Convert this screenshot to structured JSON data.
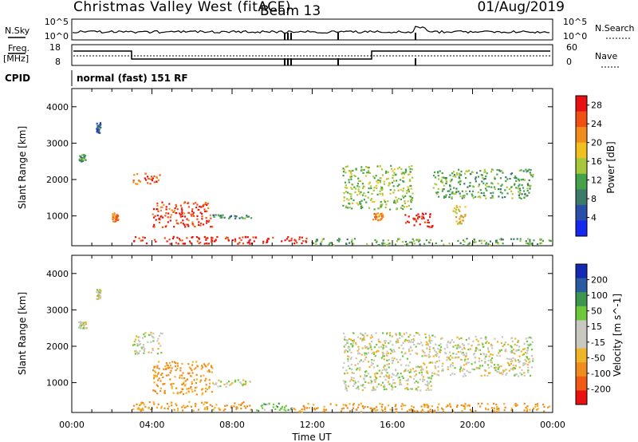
{
  "header": {
    "station": "Christmas Valley West (fitACF)",
    "beam": "Beam 13",
    "date": "01/Aug/2019"
  },
  "nsky_panel": {
    "left_label": "N.Sky",
    "left_tick_top": "10^5",
    "left_tick_bottom": "10^0",
    "right_tick_top": "10^5",
    "right_tick_bottom": "10^0",
    "right_label": "N.Search"
  },
  "freq_panel": {
    "left_label_1": "Freq.",
    "left_label_2": "[MHz]",
    "left_tick_top": "18",
    "left_tick_bottom": "8",
    "right_tick_top": "60",
    "right_tick_bottom": "0",
    "right_label": "Nave"
  },
  "cpid": {
    "label": "CPID",
    "value": "normal (fast) 151 RF"
  },
  "colors": {
    "power_scale": [
      "#1428f0",
      "#2a4fa8",
      "#3c7a6a",
      "#45a24a",
      "#a8c83c",
      "#f0c020",
      "#f08c1e",
      "#f05014",
      "#e81010"
    ],
    "velocity_scale": [
      "#e81010",
      "#f05a14",
      "#f08c1e",
      "#f0b428",
      "#c8c8c0",
      "#c8c8c0",
      "#6ec83c",
      "#3c9650",
      "#2a5aa0",
      "#1428b4"
    ]
  },
  "chart_data": [
    {
      "type": "heatmap",
      "title": "",
      "xlabel": "Time UT",
      "ylabel": "Slant Range [km]",
      "x_ticks": [
        "00:00",
        "04:00",
        "08:00",
        "12:00",
        "16:00",
        "20:00",
        "00:00"
      ],
      "xlim_hours": [
        0,
        24
      ],
      "y_ticks": [
        "1000",
        "2000",
        "3000",
        "4000"
      ],
      "ylim_km": [
        180,
        4500
      ],
      "colorbar": {
        "label": "Power [dB]",
        "ticks": [
          "4",
          "8",
          "12",
          "16",
          "20",
          "24",
          "28"
        ],
        "range": [
          0,
          30
        ]
      },
      "scatter_regions": [
        {
          "t_start": 0.3,
          "t_end": 0.7,
          "range_km": [
            2500,
            2700
          ],
          "power_db": 10
        },
        {
          "t_start": 1.2,
          "t_end": 1.4,
          "range_km": [
            3300,
            3600
          ],
          "power_db": 6
        },
        {
          "t_start": 2.0,
          "t_end": 2.3,
          "range_km": [
            850,
            1100
          ],
          "power_db": 22
        },
        {
          "t_start": 3.0,
          "t_end": 4.5,
          "range_km": [
            1900,
            2200
          ],
          "power_db": 24
        },
        {
          "t_start": 4.0,
          "t_end": 7.0,
          "range_km": [
            700,
            1400
          ],
          "power_db": 26
        },
        {
          "t_start": 7.0,
          "t_end": 9.0,
          "range_km": [
            950,
            1050
          ],
          "power_db": 10
        },
        {
          "t_start": 3.0,
          "t_end": 12.0,
          "range_km": [
            250,
            450
          ],
          "power_db": 28
        },
        {
          "t_start": 12.0,
          "t_end": 24.0,
          "range_km": [
            220,
            400
          ],
          "power_db": 12
        },
        {
          "t_start": 13.5,
          "t_end": 17.0,
          "range_km": [
            1200,
            2400
          ],
          "power_db": 14
        },
        {
          "t_start": 15.0,
          "t_end": 15.5,
          "range_km": [
            900,
            1100
          ],
          "power_db": 22
        },
        {
          "t_start": 16.5,
          "t_end": 18.0,
          "range_km": [
            700,
            1100
          ],
          "power_db": 28
        },
        {
          "t_start": 18.0,
          "t_end": 23.0,
          "range_km": [
            1500,
            2300
          ],
          "power_db": 12
        },
        {
          "t_start": 19.0,
          "t_end": 19.6,
          "range_km": [
            800,
            1300
          ],
          "power_db": 18
        }
      ]
    },
    {
      "type": "heatmap",
      "title": "",
      "xlabel": "Time UT",
      "ylabel": "Slant Range [km]",
      "x_ticks": [
        "00:00",
        "04:00",
        "08:00",
        "12:00",
        "16:00",
        "20:00",
        "00:00"
      ],
      "xlim_hours": [
        0,
        24
      ],
      "y_ticks": [
        "1000",
        "2000",
        "3000",
        "4000"
      ],
      "ylim_km": [
        180,
        4500
      ],
      "colorbar": {
        "label": "Velocity [m s^-1]",
        "ticks": [
          "200",
          "100",
          "50",
          "15",
          "-15",
          "-50",
          "-100",
          "-200"
        ],
        "range": [
          -250,
          250
        ]
      },
      "scatter_regions": [
        {
          "t_start": 0.3,
          "t_end": 0.7,
          "range_km": [
            2500,
            2700
          ],
          "velocity": 0
        },
        {
          "t_start": 1.2,
          "t_end": 1.4,
          "range_km": [
            3300,
            3600
          ],
          "velocity": 0
        },
        {
          "t_start": 3.0,
          "t_end": 4.5,
          "range_km": [
            1800,
            2400
          ],
          "velocity": 0
        },
        {
          "t_start": 4.0,
          "t_end": 7.0,
          "range_km": [
            700,
            1600
          ],
          "velocity": -60
        },
        {
          "t_start": 7.0,
          "t_end": 9.0,
          "range_km": [
            900,
            1100
          ],
          "velocity": 0
        },
        {
          "t_start": 3.0,
          "t_end": 9.0,
          "range_km": [
            250,
            500
          ],
          "velocity": -60
        },
        {
          "t_start": 9.0,
          "t_end": 11.0,
          "range_km": [
            250,
            450
          ],
          "velocity": 40
        },
        {
          "t_start": 11.0,
          "t_end": 24.0,
          "range_km": [
            220,
            450
          ],
          "velocity": -60
        },
        {
          "t_start": 13.5,
          "t_end": 18.0,
          "range_km": [
            800,
            2400
          ],
          "velocity": 0
        },
        {
          "t_start": 18.0,
          "t_end": 23.0,
          "range_km": [
            1200,
            2300
          ],
          "velocity": 0
        }
      ]
    }
  ]
}
